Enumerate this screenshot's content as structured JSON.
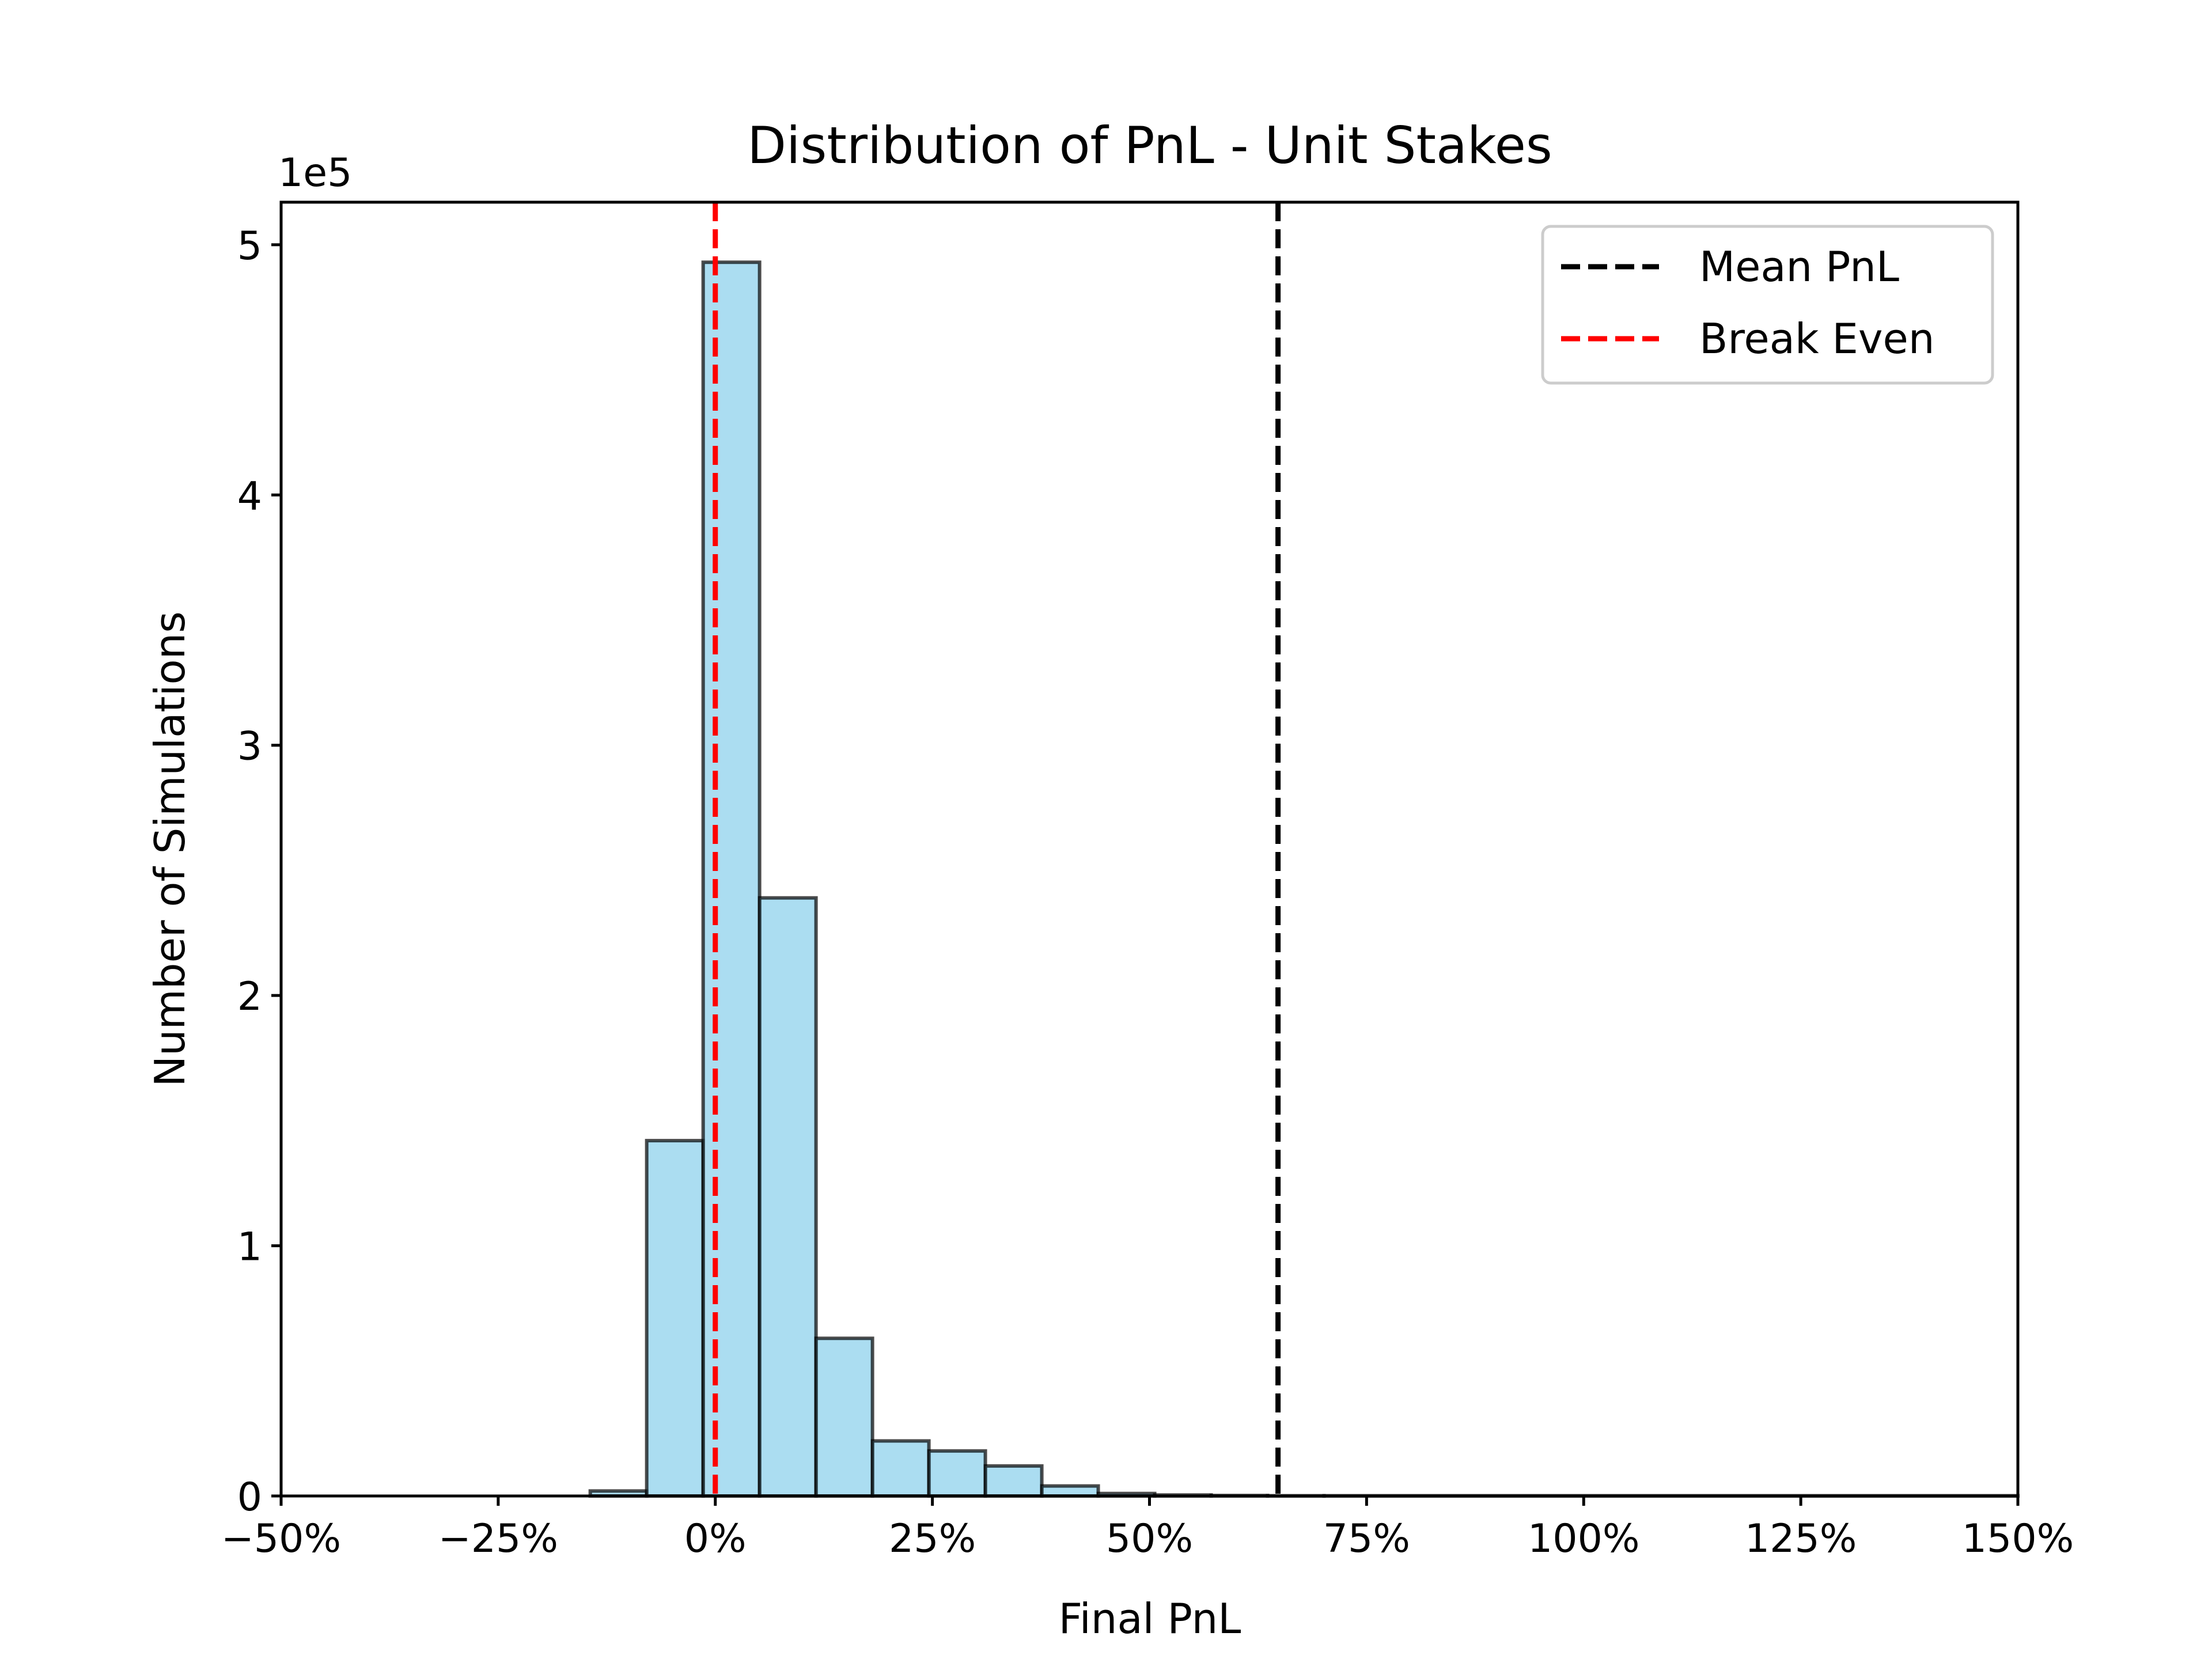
{
  "chart_data": {
    "type": "bar",
    "title": "Distribution of PnL - Unit Stakes",
    "xlabel": "Final PnL",
    "ylabel": "Number of Simulations",
    "y_scale_label": "1e5",
    "xlim": [
      -50,
      150
    ],
    "ylim": [
      0,
      5.17
    ],
    "x_unit": "%",
    "y_unit": "1e5 simulations",
    "x_ticks": [
      -50,
      -25,
      0,
      25,
      50,
      75,
      100,
      125,
      150
    ],
    "x_tick_labels": [
      "−50%",
      "−25%",
      "0%",
      "25%",
      "50%",
      "75%",
      "100%",
      "125%",
      "150%"
    ],
    "y_ticks": [
      0,
      1,
      2,
      3,
      4,
      5
    ],
    "y_tick_labels": [
      "0",
      "1",
      "2",
      "3",
      "4",
      "5"
    ],
    "bin_edges": [
      -50,
      -43.5,
      -37,
      -30.5,
      -24,
      -17.5,
      -11,
      -4.5,
      2,
      8.5,
      15,
      21.5,
      28,
      34.5,
      41,
      47.5,
      54,
      60.5,
      67,
      73.5,
      80,
      86.5,
      93,
      99.5,
      106,
      112.5,
      119,
      125.5,
      132,
      138.5,
      145,
      151.5
    ],
    "bins": [
      {
        "x0": -14.4,
        "x1": -7.9,
        "value": 0.02
      },
      {
        "x0": -7.9,
        "x1": -1.4,
        "value": 1.42
      },
      {
        "x0": -1.4,
        "x1": 5.1,
        "value": 4.93
      },
      {
        "x0": 5.1,
        "x1": 11.6,
        "value": 2.39
      },
      {
        "x0": 11.6,
        "x1": 18.1,
        "value": 0.63
      },
      {
        "x0": 18.1,
        "x1": 24.6,
        "value": 0.22
      },
      {
        "x0": 24.6,
        "x1": 31.1,
        "value": 0.18
      },
      {
        "x0": 31.1,
        "x1": 37.6,
        "value": 0.12
      },
      {
        "x0": 37.6,
        "x1": 44.1,
        "value": 0.04
      },
      {
        "x0": 44.1,
        "x1": 50.6,
        "value": 0.01
      },
      {
        "x0": 50.6,
        "x1": 57.1,
        "value": 0.004
      },
      {
        "x0": 57.1,
        "x1": 63.6,
        "value": 0.002
      },
      {
        "x0": 63.6,
        "x1": 70.1,
        "value": 0.001
      },
      {
        "x0": 70.1,
        "x1": 150,
        "value": 0.001
      }
    ],
    "bar_color": "#87CEEB",
    "bar_edge_color": "#000000",
    "vlines": [
      {
        "name": "Mean PnL",
        "x": 64.8,
        "color": "#000000",
        "style": "dashed"
      },
      {
        "name": "Break Even",
        "x": 0,
        "color": "#ff0000",
        "style": "dashed"
      }
    ],
    "legend": {
      "position": "top-right",
      "entries": [
        {
          "label": "Mean PnL",
          "color": "#000000"
        },
        {
          "label": "Break Even",
          "color": "#ff0000"
        }
      ]
    },
    "grid": false
  }
}
